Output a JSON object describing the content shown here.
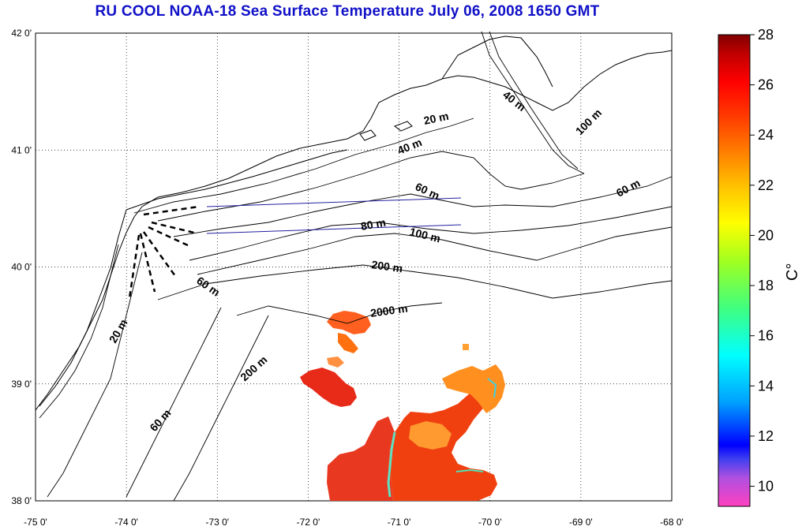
{
  "title": "RU COOL  NOAA-18 Sea Surface Temperature July 06, 2008 1650 GMT",
  "map": {
    "lon_ticks": [
      "-75 0'",
      "-74 0'",
      "-73 0'",
      "-72 0'",
      "-71 0'",
      "-70 0'",
      "-69 0'",
      "-68 0'"
    ],
    "lat_ticks": [
      "38 0'",
      "39 0'",
      "40 0'",
      "41 0'",
      "42 0'"
    ],
    "lon_range": [
      -75,
      -68
    ],
    "lat_range": [
      38,
      42
    ],
    "grid": "dotted",
    "contour_labels": [
      "20 m",
      "40 m",
      "40 m",
      "60 m",
      "80 m",
      "100 m",
      "100 m",
      "60 m",
      "200 m",
      "2000 m",
      "200 m",
      "60 m",
      "20 m",
      "60 m"
    ]
  },
  "colorbar": {
    "unit": "C°",
    "ticks": [
      "28",
      "26",
      "24",
      "22",
      "20",
      "18",
      "16",
      "14",
      "12",
      "10"
    ],
    "range": [
      9.2,
      28
    ],
    "colors": [
      "#ff40c0",
      "#b050e0",
      "#4040f0",
      "#0000ff",
      "#00a0ff",
      "#00ffff",
      "#40ff80",
      "#a0ff20",
      "#ffff00",
      "#ffc000",
      "#ff8000",
      "#ff4000",
      "#ff0000",
      "#c00000",
      "#800000"
    ]
  }
}
